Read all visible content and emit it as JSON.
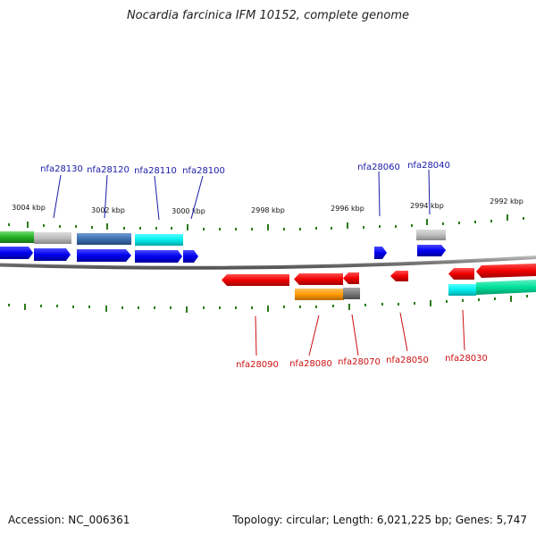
{
  "title": "Nocardia farcinica IFM 10152, complete genome",
  "footer": {
    "accession": "Accession: NC_006361",
    "summary": "Topology: circular; Length: 6,021,225 bp; Genes: 5,747"
  },
  "colors": {
    "forward_label": "#1a1aa8",
    "reverse_label": "#cc1010",
    "tick": "#2a7a1a",
    "backbone": "#8a8a8a"
  },
  "scale_labels": [
    "3004 kbp",
    "3002 kbp",
    "3000 kbp",
    "2998 kbp",
    "2996 kbp",
    "2994 kbp",
    "2992 kbp"
  ],
  "forward_genes": [
    {
      "id": "nfa28130"
    },
    {
      "id": "nfa28120"
    },
    {
      "id": "nfa28110"
    },
    {
      "id": "nfa28100"
    },
    {
      "id": "nfa28060"
    },
    {
      "id": "nfa28040"
    }
  ],
  "reverse_genes": [
    {
      "id": "nfa28090"
    },
    {
      "id": "nfa28080"
    },
    {
      "id": "nfa28070"
    },
    {
      "id": "nfa28050"
    },
    {
      "id": "nfa28030"
    }
  ]
}
